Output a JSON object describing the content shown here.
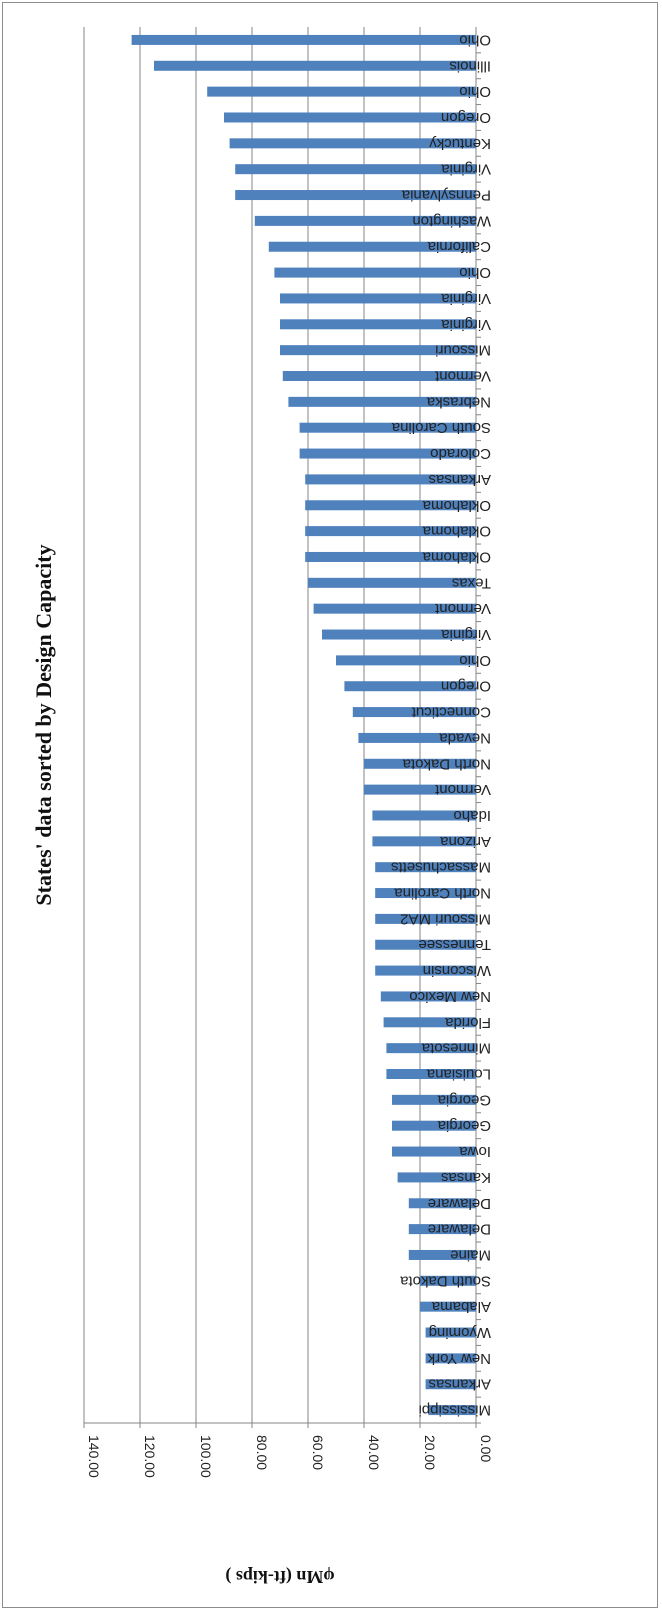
{
  "chart_data": {
    "type": "bar",
    "orientation": "horizontal",
    "title": "States' data sorted by Design Capacity",
    "ylabel": "φMn (ft-kips )",
    "xlabel": "",
    "ylim": [
      0,
      140
    ],
    "yticks": [
      "0.00",
      "20.00",
      "40.00",
      "60.00",
      "80.00",
      "100.00",
      "120.00",
      "140.00"
    ],
    "grid": true,
    "legend": "none",
    "bar_color": "#4F81BD",
    "categories": [
      "Mississippi",
      "Arkansas",
      "New York",
      "Wyoming",
      "Alabama",
      "South Dakota",
      "Maine",
      "Delaware",
      "Delaware",
      "Kansas",
      "Iowa",
      "Georgia",
      "Georgia",
      "Louisiana",
      "Minnesota",
      "Florida",
      "New Mexico",
      "Wisconsin",
      "Tennessee",
      "Missouri MA2",
      "North Carolina",
      "Massachusetts",
      "Arizona",
      "Idaho",
      "Vermont",
      "North Dakota",
      "Nevada",
      "Connecticut",
      "Oregon",
      "Ohio",
      "Virginia",
      "Vermont",
      "Texas",
      "Oklahoma",
      "Oklahoma",
      "Oklahoma",
      "Arkansas",
      "Colorado",
      "South Carolina",
      "Nebraska",
      "Vermont",
      "Missouri",
      "Virginia",
      "Virginia",
      "Ohio",
      "California",
      "Washington",
      "Pennsylvania",
      "Virginia",
      "Kentucky",
      "Oregon",
      "Ohio",
      "Illinois",
      "Ohio"
    ],
    "values": [
      17,
      18,
      18,
      18,
      20,
      20,
      24,
      24,
      24,
      28,
      30,
      30,
      30,
      32,
      32,
      33,
      34,
      36,
      36,
      36,
      36,
      36,
      37,
      37,
      40,
      40,
      42,
      44,
      47,
      50,
      55,
      58,
      60,
      61,
      61,
      61,
      61,
      63,
      63,
      67,
      69,
      70,
      70,
      70,
      72,
      74,
      79,
      86,
      86,
      88,
      90,
      96,
      115,
      123
    ]
  }
}
